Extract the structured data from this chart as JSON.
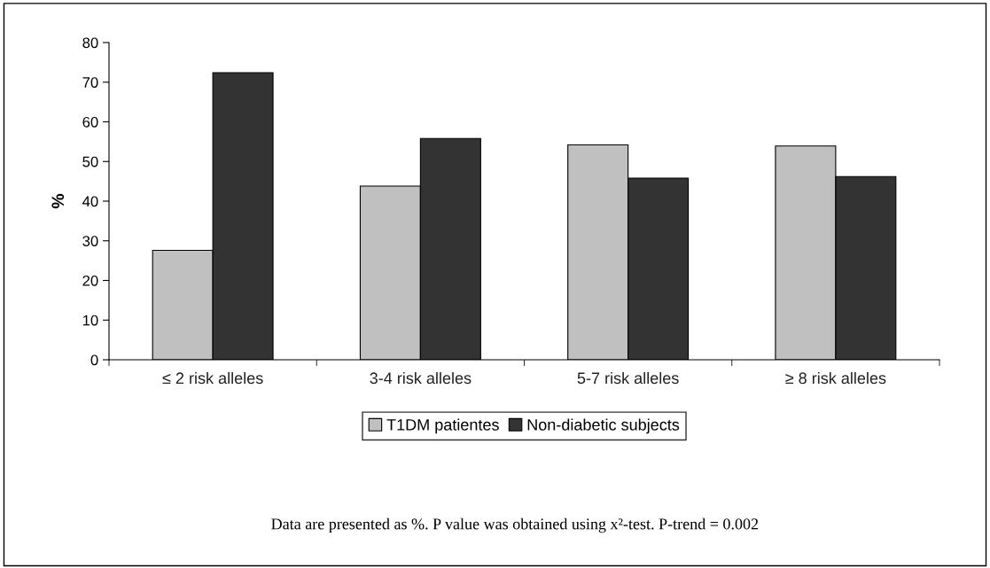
{
  "chart_data": {
    "type": "bar",
    "ylabel": "%",
    "categories": [
      "≤ 2 risk alleles",
      "3-4 risk alleles",
      "5-7 risk alleles",
      "≥ 8 risk alleles"
    ],
    "series": [
      {
        "name": "T1DM patientes",
        "color": "#c0c0c0",
        "values": [
          27.6,
          43.8,
          54.2,
          53.9
        ]
      },
      {
        "name": "Non-diabetic subjects",
        "color": "#333333",
        "values": [
          72.4,
          55.8,
          45.8,
          46.2
        ]
      }
    ],
    "ylim": [
      0,
      80
    ],
    "yticks": [
      0,
      10,
      20,
      30,
      40,
      50,
      60,
      70,
      80
    ],
    "grid": false,
    "legend": "bottom",
    "annotations": [
      "Data are presented as %. P value was obtained using x²-test. P-trend = 0.002"
    ]
  }
}
